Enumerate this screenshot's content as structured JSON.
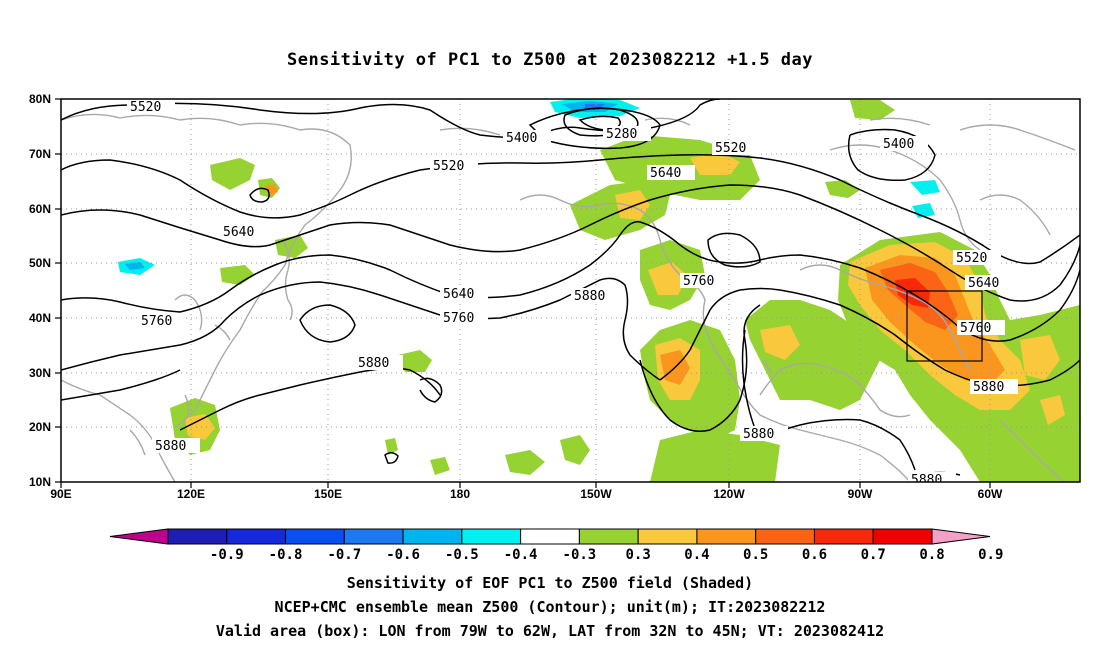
{
  "title": "Sensitivity of PC1 to Z500 at 2023082212 +1.5 day",
  "axes": {
    "x_ticks": [
      "90E",
      "120E",
      "150E",
      "180",
      "150W",
      "120W",
      "90W",
      "60W"
    ],
    "y_ticks": [
      "10N",
      "20N",
      "30N",
      "40N",
      "50N",
      "60N",
      "70N",
      "80N"
    ]
  },
  "contour_labels": [
    "5520",
    "5400",
    "5280",
    "5520",
    "5400",
    "5640",
    "5520",
    "5640",
    "5520",
    "5640",
    "5880",
    "5760",
    "5640",
    "5760",
    "5760",
    "5760",
    "5880",
    "5880",
    "5880",
    "5880",
    "5880"
  ],
  "valid_box": {
    "lon_west": "79W",
    "lon_east": "62W",
    "lat_south": "32N",
    "lat_north": "45N"
  },
  "colorbar": {
    "labels": [
      "-0.9",
      "-0.8",
      "-0.7",
      "-0.6",
      "-0.5",
      "-0.4",
      "-0.3",
      "0.3",
      "0.4",
      "0.5",
      "0.6",
      "0.7",
      "0.8",
      "0.9"
    ],
    "colors": [
      "#c0008c",
      "#1e1eb4",
      "#1428dc",
      "#0a50f0",
      "#1e78f0",
      "#00b4f0",
      "#00f0f0",
      "#ffffff",
      "#96d232",
      "#fac83c",
      "#fa961e",
      "#fa6414",
      "#fa280a",
      "#f00000",
      "#f5a0c8"
    ]
  },
  "captions": [
    "Sensitivity of EOF PC1 to Z500 field (Shaded)",
    "NCEP+CMC ensemble mean Z500 (Contour); unit(m); IT:2023082212",
    "Valid area (box): LON from 79W to 62W, LAT from 32N to 45N; VT: 2023082412"
  ]
}
